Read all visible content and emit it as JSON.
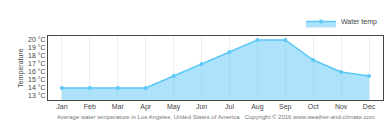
{
  "chart_data": {
    "type": "area",
    "categories": [
      "Jan",
      "Feb",
      "Mar",
      "Apr",
      "May",
      "Jun",
      "Jul",
      "Aug",
      "Sep",
      "Oct",
      "Nov",
      "Dec"
    ],
    "series": [
      {
        "name": "Water temp",
        "color": "#5bc8f5",
        "marker": "circle",
        "values": [
          14.0,
          14.0,
          14.0,
          14.0,
          15.5,
          17.0,
          18.5,
          20.0,
          20.0,
          17.5,
          16.0,
          15.5
        ]
      }
    ],
    "ylabel": "Temperature",
    "ylim": [
      12.5,
      20.5
    ],
    "yticks": [
      {
        "value": 13,
        "label": "13 °C"
      },
      {
        "value": 14,
        "label": "14 °C"
      },
      {
        "value": 15,
        "label": "15 °C"
      },
      {
        "value": 16,
        "label": "16 °C"
      },
      {
        "value": 17,
        "label": "17 °C"
      },
      {
        "value": 18,
        "label": "18 °C"
      },
      {
        "value": 19,
        "label": "19 °C"
      },
      {
        "value": 20,
        "label": "20 °C"
      }
    ],
    "grid": "x",
    "legend": "upper right",
    "annotations": [
      {
        "text": "Average water temperature in Los Angeles, United States of America   Copyright © 2016 www.weather-and-climate.com"
      }
    ]
  }
}
